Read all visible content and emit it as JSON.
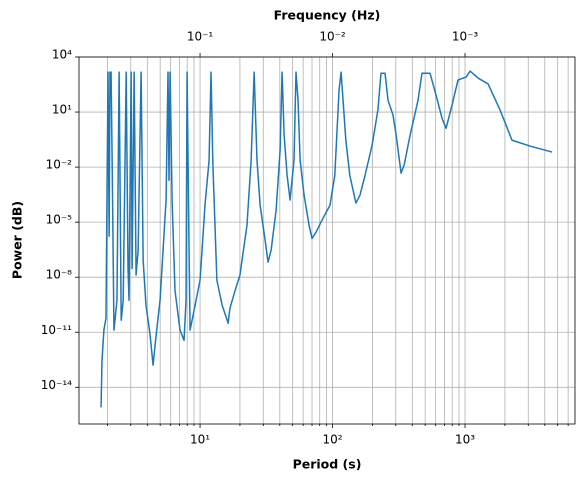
{
  "chart_data": {
    "type": "line",
    "title": "Frequency (Hz)",
    "xlabel": "Period (s)",
    "ylabel": "Power (dB)",
    "xscale": "log",
    "yscale": "log",
    "grid": true,
    "color": "#1f77b4",
    "xlim": [
      1.22,
      6760
    ],
    "ylim": [
      1e-16,
      10000
    ],
    "xticks": [
      {
        "value": 10,
        "label": "10¹"
      },
      {
        "value": 100,
        "label": "10²"
      },
      {
        "value": 1000,
        "label": "10³"
      }
    ],
    "xticks_minor": [
      2,
      3,
      4,
      5,
      6,
      7,
      8,
      9,
      20,
      30,
      40,
      50,
      60,
      70,
      80,
      90,
      200,
      300,
      400,
      500,
      600,
      700,
      800,
      900,
      2000,
      3000,
      4000,
      5000,
      6000
    ],
    "x2ticks": [
      {
        "value": 0.1,
        "label": "10⁻¹"
      },
      {
        "value": 0.01,
        "label": "10⁻²"
      },
      {
        "value": 0.001,
        "label": "10⁻³"
      }
    ],
    "yticks": [
      {
        "value": 10000,
        "label": "10⁴"
      },
      {
        "value": 10,
        "label": "10¹"
      },
      {
        "value": 0.01,
        "label": "10⁻²"
      },
      {
        "value": 1e-05,
        "label": "10⁻⁵"
      },
      {
        "value": 1e-08,
        "label": "10⁻⁸"
      },
      {
        "value": 1e-11,
        "label": "10⁻¹¹"
      },
      {
        "value": 1e-14,
        "label": "10⁻¹⁴"
      }
    ],
    "x": [
      1.79,
      1.82,
      1.88,
      1.95,
      2.02,
      2.06,
      2.09,
      2.13,
      2.17,
      2.24,
      2.36,
      2.45,
      2.54,
      2.63,
      2.77,
      2.86,
      2.91,
      3.02,
      3.07,
      3.18,
      3.29,
      3.41,
      3.59,
      3.72,
      3.91,
      4.2,
      4.42,
      4.66,
      4.99,
      5.26,
      5.54,
      5.73,
      5.83,
      5.94,
      6.15,
      6.47,
      7.06,
      7.57,
      7.84,
      7.98,
      8.26,
      8.41,
      9.17,
      10,
      10.9,
      11.7,
      12.1,
      12.5,
      13.4,
      14.7,
      16.3,
      16.8,
      18.4,
      20,
      22.6,
      24.3,
      25.6,
      26.9,
      28.4,
      31,
      32.6,
      34.4,
      37.5,
      40.2,
      41.6,
      43.1,
      45.4,
      47.8,
      51.2,
      53,
      54.9,
      56.9,
      61,
      66.5,
      70,
      75,
      83.3,
      95.7,
      104,
      112,
      116,
      120,
      126,
      135,
      150,
      161,
      176,
      199,
      220,
      232,
      249,
      262,
      286,
      302,
      329,
      347,
      385,
      442,
      473,
      544,
      604,
      670,
      719,
      798,
      885,
      1019,
      1091,
      1254,
      1493,
      1837,
      2263,
      3097,
      4540
    ],
    "values": [
      8.1e-16,
      3e-13,
      1.3e-11,
      5.8e-11,
      1500,
      1.7e-06,
      1500,
      1500,
      0.024,
      1.3e-11,
      5.5e-10,
      1500,
      4.5e-11,
      5.5e-10,
      1500,
      3e-08,
      5.5e-10,
      1500,
      3e-08,
      1500,
      1.3e-08,
      3e-07,
      1500,
      8.5e-08,
      2.9e-10,
      6.8e-12,
      1.6e-13,
      6.8e-12,
      5.5e-10,
      3e-07,
      0.00016,
      1500,
      0.0019,
      1500,
      0.00016,
      1.9e-09,
      1.3e-11,
      3.6e-12,
      5.5e-10,
      1500,
      3e-07,
      1.3e-11,
      2.9e-10,
      6.8e-09,
      8.5e-05,
      0.024,
      1500,
      0.013,
      6.8e-09,
      2.9e-10,
      3.1e-11,
      2e-10,
      1.9e-09,
      1.3e-08,
      6.8e-06,
      0.024,
      1500,
      0.024,
      8.5e-05,
      1e-06,
      6.6e-08,
      3e-07,
      4.5e-05,
      0.085,
      1500,
      0.55,
      0.0036,
      0.00016,
      0.024,
      1500,
      45,
      0.024,
      0.00029,
      6.8e-06,
      1.3e-06,
      2.8e-06,
      1.3e-05,
      8.5e-05,
      0.0036,
      160,
      1500,
      45,
      0.29,
      0.0036,
      0.00011,
      0.00029,
      0.0036,
      0.16,
      13,
      1300,
      1300,
      45,
      6.9,
      0.55,
      0.0047,
      0.013,
      0.55,
      45,
      1300,
      1300,
      85,
      4.7,
      1.3,
      24,
      560,
      810,
      1700,
      710,
      340,
      13,
      0.29,
      0.14,
      0.066
    ]
  }
}
